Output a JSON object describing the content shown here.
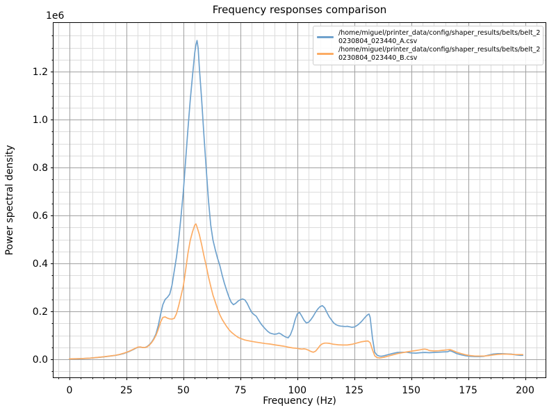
{
  "chart_data": {
    "type": "line",
    "title": "Frequency responses comparison",
    "xlabel": "Frequency (Hz)",
    "ylabel": "Power spectral density",
    "y_offset_label": "1e6",
    "xlim": [
      -7,
      209
    ],
    "ylim": [
      -75000,
      1403000
    ],
    "x_major_ticks": [
      0,
      25,
      50,
      75,
      100,
      125,
      150,
      175,
      200
    ],
    "x_tick_labels": [
      "0",
      "25",
      "50",
      "75",
      "100",
      "125",
      "150",
      "175",
      "200"
    ],
    "x_minor_step": 5,
    "y_major_ticks": [
      0,
      200000,
      400000,
      600000,
      800000,
      1000000,
      1200000
    ],
    "y_tick_labels": [
      "0.0",
      "0.2",
      "0.4",
      "0.6",
      "0.8",
      "1.0",
      "1.2"
    ],
    "y_minor_step": 50000,
    "grid": {
      "major": true,
      "minor": true,
      "major_color": "#a0a0a0",
      "minor_color": "#dcdcdc"
    },
    "legend_position": "upper right",
    "series": [
      {
        "name": "belt_A",
        "label": "/home/miguel/printer_data/config/shaper_results/belts/belt_20230804_023440_A.csv",
        "label_lines": [
          "/home/miguel/printer_data/config/shaper_results/belts/belt_2",
          "0230804_023440_A.csv"
        ],
        "color": "#6fa2cd",
        "points": [
          [
            0,
            2000
          ],
          [
            3,
            2600
          ],
          [
            6,
            3500
          ],
          [
            9,
            5000
          ],
          [
            12,
            7500
          ],
          [
            15,
            10500
          ],
          [
            18,
            14000
          ],
          [
            20,
            16500
          ],
          [
            22,
            20000
          ],
          [
            24,
            25000
          ],
          [
            26,
            32000
          ],
          [
            28,
            41000
          ],
          [
            29,
            46000
          ],
          [
            30,
            50500
          ],
          [
            31,
            52000
          ],
          [
            32,
            50000
          ],
          [
            33,
            49000
          ],
          [
            34,
            53000
          ],
          [
            35,
            61000
          ],
          [
            36,
            71000
          ],
          [
            37,
            86000
          ],
          [
            38,
            107000
          ],
          [
            39,
            142000
          ],
          [
            40,
            188000
          ],
          [
            41,
            228000
          ],
          [
            42,
            250000
          ],
          [
            43,
            259000
          ],
          [
            44,
            272000
          ],
          [
            45,
            308000
          ],
          [
            46,
            368000
          ],
          [
            47,
            428000
          ],
          [
            48,
            505000
          ],
          [
            49,
            600000
          ],
          [
            50,
            700000
          ],
          [
            51,
            830000
          ],
          [
            52,
            960000
          ],
          [
            53,
            1080000
          ],
          [
            54,
            1180000
          ],
          [
            55,
            1278000
          ],
          [
            55.5,
            1312000
          ],
          [
            56,
            1330000
          ],
          [
            56.5,
            1298000
          ],
          [
            57,
            1218000
          ],
          [
            58,
            1085000
          ],
          [
            59,
            940000
          ],
          [
            60,
            800000
          ],
          [
            61,
            665000
          ],
          [
            62,
            560000
          ],
          [
            63,
            498000
          ],
          [
            64,
            458000
          ],
          [
            65,
            422000
          ],
          [
            66,
            392000
          ],
          [
            67,
            352000
          ],
          [
            68,
            318000
          ],
          [
            69,
            288000
          ],
          [
            70,
            260000
          ],
          [
            71,
            238000
          ],
          [
            72,
            228000
          ],
          [
            73,
            234000
          ],
          [
            74,
            243000
          ],
          [
            75,
            249000
          ],
          [
            76,
            252000
          ],
          [
            77,
            248000
          ],
          [
            78,
            234000
          ],
          [
            79,
            214000
          ],
          [
            80,
            196000
          ],
          [
            81,
            187000
          ],
          [
            82,
            180000
          ],
          [
            83,
            164000
          ],
          [
            84,
            149000
          ],
          [
            85,
            137000
          ],
          [
            86,
            127000
          ],
          [
            87,
            117000
          ],
          [
            88,
            110000
          ],
          [
            89,
            107000
          ],
          [
            90,
            105000
          ],
          [
            91,
            106000
          ],
          [
            92,
            110000
          ],
          [
            93,
            105000
          ],
          [
            94,
            98000
          ],
          [
            95,
            93000
          ],
          [
            96,
            90000
          ],
          [
            97,
            103000
          ],
          [
            98,
            128000
          ],
          [
            99,
            163000
          ],
          [
            100,
            190000
          ],
          [
            101,
            196000
          ],
          [
            102,
            180000
          ],
          [
            103,
            163000
          ],
          [
            104,
            152000
          ],
          [
            105,
            155000
          ],
          [
            106,
            166000
          ],
          [
            107,
            180000
          ],
          [
            108,
            196000
          ],
          [
            109,
            210000
          ],
          [
            110,
            220000
          ],
          [
            111,
            224000
          ],
          [
            112,
            215000
          ],
          [
            113,
            196000
          ],
          [
            114,
            178000
          ],
          [
            115,
            165000
          ],
          [
            116,
            152000
          ],
          [
            117,
            145000
          ],
          [
            118,
            141000
          ],
          [
            119,
            139000
          ],
          [
            120,
            138000
          ],
          [
            121,
            137000
          ],
          [
            122,
            138000
          ],
          [
            123,
            136000
          ],
          [
            124,
            134000
          ],
          [
            125,
            135000
          ],
          [
            126,
            140000
          ],
          [
            127,
            147000
          ],
          [
            128,
            156000
          ],
          [
            129,
            167000
          ],
          [
            130,
            178000
          ],
          [
            131,
            187000
          ],
          [
            131.5,
            189000
          ],
          [
            132,
            175000
          ],
          [
            133,
            90000
          ],
          [
            134,
            30000
          ],
          [
            135,
            18000
          ],
          [
            136,
            14000
          ],
          [
            137,
            13000
          ],
          [
            138,
            15000
          ],
          [
            140,
            20000
          ],
          [
            142,
            25000
          ],
          [
            144,
            29000
          ],
          [
            146,
            30000
          ],
          [
            148,
            30000
          ],
          [
            150,
            27000
          ],
          [
            152,
            26000
          ],
          [
            154,
            28000
          ],
          [
            156,
            29000
          ],
          [
            158,
            28000
          ],
          [
            160,
            29000
          ],
          [
            162,
            30000
          ],
          [
            164,
            31000
          ],
          [
            166,
            32000
          ],
          [
            167,
            36000
          ],
          [
            168,
            33000
          ],
          [
            170,
            24000
          ],
          [
            172,
            19000
          ],
          [
            174,
            15000
          ],
          [
            176,
            13000
          ],
          [
            178,
            12000
          ],
          [
            180,
            12000
          ],
          [
            182,
            13000
          ],
          [
            184,
            18000
          ],
          [
            186,
            22000
          ],
          [
            188,
            24000
          ],
          [
            190,
            24000
          ],
          [
            192,
            23000
          ],
          [
            194,
            22000
          ],
          [
            196,
            19000
          ],
          [
            198,
            17000
          ],
          [
            199,
            17000
          ]
        ]
      },
      {
        "name": "belt_B",
        "label": "/home/miguel/printer_data/config/shaper_results/belts/belt_20230804_023440_B.csv",
        "label_lines": [
          "/home/miguel/printer_data/config/shaper_results/belts/belt_2",
          "0230804_023440_B.csv"
        ],
        "color": "#fcac64",
        "points": [
          [
            0,
            2000
          ],
          [
            3,
            2700
          ],
          [
            6,
            3700
          ],
          [
            9,
            5200
          ],
          [
            12,
            7800
          ],
          [
            15,
            11000
          ],
          [
            18,
            14500
          ],
          [
            20,
            17000
          ],
          [
            22,
            21000
          ],
          [
            24,
            26000
          ],
          [
            26,
            33000
          ],
          [
            28,
            42000
          ],
          [
            29,
            47000
          ],
          [
            30,
            51000
          ],
          [
            31,
            52000
          ],
          [
            32,
            50000
          ],
          [
            33,
            49000
          ],
          [
            34,
            52000
          ],
          [
            35,
            59000
          ],
          [
            36,
            69000
          ],
          [
            37,
            83000
          ],
          [
            38,
            101000
          ],
          [
            39,
            126000
          ],
          [
            40,
            156000
          ],
          [
            41,
            175000
          ],
          [
            42,
            177000
          ],
          [
            43,
            172000
          ],
          [
            44,
            169000
          ],
          [
            45,
            168000
          ],
          [
            46,
            171000
          ],
          [
            47,
            191000
          ],
          [
            48,
            226000
          ],
          [
            49,
            266000
          ],
          [
            50,
            306000
          ],
          [
            51,
            372000
          ],
          [
            52,
            442000
          ],
          [
            53,
            496000
          ],
          [
            54,
            531000
          ],
          [
            55,
            560000
          ],
          [
            55.5,
            565000
          ],
          [
            56,
            552000
          ],
          [
            57,
            521000
          ],
          [
            58,
            479000
          ],
          [
            59,
            434000
          ],
          [
            60,
            392000
          ],
          [
            61,
            345000
          ],
          [
            62,
            305000
          ],
          [
            63,
            268000
          ],
          [
            64,
            240000
          ],
          [
            65,
            211000
          ],
          [
            66,
            186000
          ],
          [
            67,
            167000
          ],
          [
            68,
            152000
          ],
          [
            69,
            137000
          ],
          [
            70,
            124000
          ],
          [
            71,
            114000
          ],
          [
            72,
            106000
          ],
          [
            73,
            99000
          ],
          [
            74,
            92000
          ],
          [
            75,
            88000
          ],
          [
            76,
            84000
          ],
          [
            77,
            81000
          ],
          [
            78,
            79000
          ],
          [
            80,
            75000
          ],
          [
            82,
            72000
          ],
          [
            84,
            69000
          ],
          [
            86,
            66000
          ],
          [
            88,
            64000
          ],
          [
            90,
            61000
          ],
          [
            92,
            58000
          ],
          [
            94,
            55000
          ],
          [
            96,
            51000
          ],
          [
            98,
            48000
          ],
          [
            100,
            46000
          ],
          [
            101,
            44000
          ],
          [
            102,
            43000
          ],
          [
            103,
            44000
          ],
          [
            104,
            42000
          ],
          [
            105,
            38000
          ],
          [
            106,
            33000
          ],
          [
            107,
            30000
          ],
          [
            108,
            34000
          ],
          [
            109,
            45000
          ],
          [
            110,
            58000
          ],
          [
            111,
            65000
          ],
          [
            112,
            68000
          ],
          [
            113,
            68000
          ],
          [
            114,
            67000
          ],
          [
            115,
            65000
          ],
          [
            116,
            63000
          ],
          [
            117,
            62000
          ],
          [
            118,
            61000
          ],
          [
            120,
            60000
          ],
          [
            122,
            60000
          ],
          [
            124,
            63000
          ],
          [
            126,
            68000
          ],
          [
            128,
            73000
          ],
          [
            130,
            76000
          ],
          [
            131,
            77000
          ],
          [
            132,
            70000
          ],
          [
            133,
            40000
          ],
          [
            134,
            15000
          ],
          [
            135,
            8000
          ],
          [
            136,
            6000
          ],
          [
            137,
            7000
          ],
          [
            138,
            9000
          ],
          [
            140,
            14000
          ],
          [
            142,
            19000
          ],
          [
            144,
            24000
          ],
          [
            146,
            28000
          ],
          [
            148,
            31000
          ],
          [
            150,
            34000
          ],
          [
            152,
            37000
          ],
          [
            154,
            40000
          ],
          [
            155,
            42000
          ],
          [
            156,
            43000
          ],
          [
            157,
            41000
          ],
          [
            158,
            37000
          ],
          [
            160,
            35000
          ],
          [
            162,
            36000
          ],
          [
            164,
            38000
          ],
          [
            166,
            40000
          ],
          [
            167,
            41000
          ],
          [
            168,
            38000
          ],
          [
            170,
            30000
          ],
          [
            172,
            24000
          ],
          [
            174,
            19000
          ],
          [
            176,
            16000
          ],
          [
            178,
            14000
          ],
          [
            180,
            14000
          ],
          [
            182,
            14000
          ],
          [
            184,
            16000
          ],
          [
            186,
            19000
          ],
          [
            188,
            21000
          ],
          [
            190,
            22000
          ],
          [
            192,
            22000
          ],
          [
            194,
            21000
          ],
          [
            196,
            20000
          ],
          [
            198,
            20000
          ],
          [
            199,
            20000
          ]
        ]
      }
    ]
  }
}
